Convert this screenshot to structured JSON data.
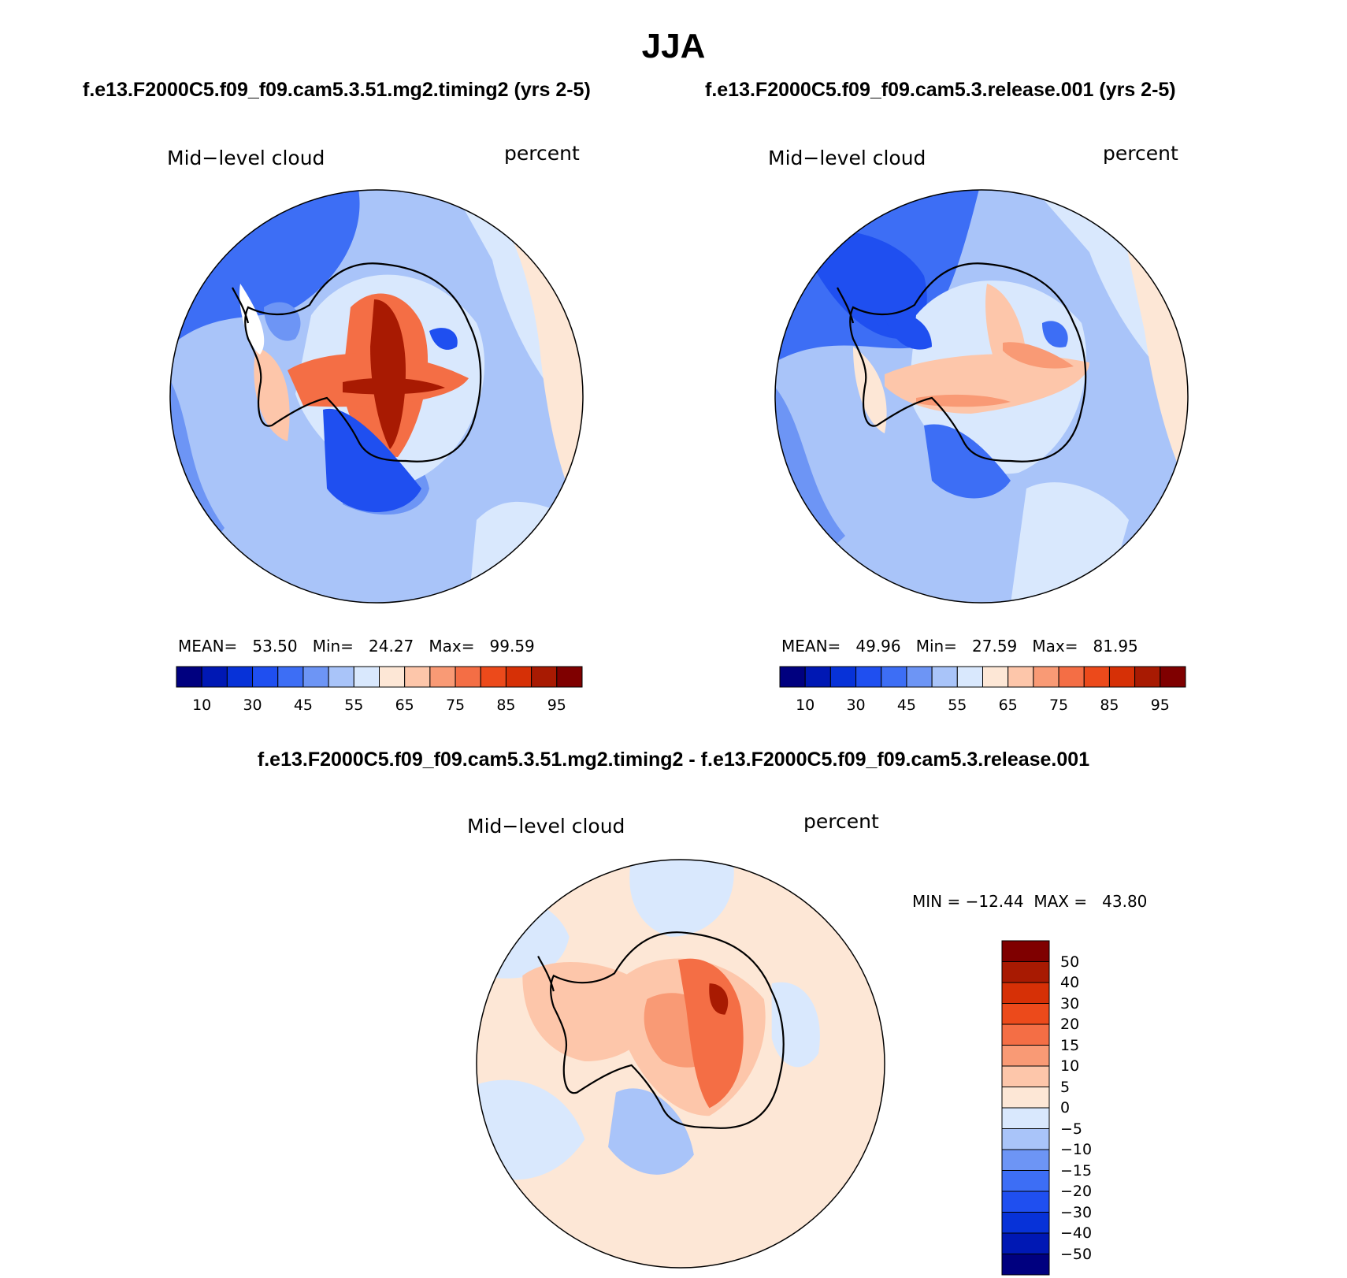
{
  "figure": {
    "title": "JJA",
    "diff_title": "f.e13.F2000C5.f09_f09.cam5.3.51.mg2.timing2 - f.e13.F2000C5.f09_f09.cam5.3.release.001"
  },
  "panels": [
    {
      "case": "f.e13.F2000C5.f09_f09.cam5.3.51.mg2.timing2 (yrs 2-5)",
      "variable": "Mid−level cloud",
      "units": "percent",
      "stats": "MEAN=   53.50   Min=   24.27   Max=   99.59"
    },
    {
      "case": "f.e13.F2000C5.f09_f09.cam5.3.release.001 (yrs 2-5)",
      "variable": "Mid−level cloud",
      "units": "percent",
      "stats": "MEAN=   49.96   Min=   27.59   Max=   81.95"
    },
    {
      "case": "",
      "variable": "Mid−level cloud",
      "units": "percent",
      "stats": "MIN = −12.44  MAX =   43.80"
    }
  ],
  "colorbar_abs": {
    "colors": [
      "#00007f",
      "#0018b4",
      "#0732d8",
      "#1f4ff0",
      "#3d6ef5",
      "#6d95f5",
      "#a9c4f9",
      "#d9e8fd",
      "#fde7d6",
      "#fdc6aa",
      "#f99a75",
      "#f46e45",
      "#ec4a1b",
      "#d63006",
      "#a81a02",
      "#7f0000"
    ],
    "ticks": [
      "10",
      "30",
      "45",
      "55",
      "65",
      "75",
      "85",
      "95"
    ]
  },
  "colorbar_diff": {
    "colors": [
      "#7f0000",
      "#a81a02",
      "#d63006",
      "#ec4a1b",
      "#f46e45",
      "#f99a75",
      "#fdc6aa",
      "#fde7d6",
      "#d9e8fd",
      "#a9c4f9",
      "#6d95f5",
      "#3d6ef5",
      "#1f4ff0",
      "#0732d8",
      "#0018b4",
      "#00007f"
    ],
    "ticks": [
      "50",
      "40",
      "30",
      "20",
      "15",
      "10",
      "5",
      "0",
      "−5",
      "−10",
      "−15",
      "−20",
      "−30",
      "−40",
      "−50"
    ]
  }
}
